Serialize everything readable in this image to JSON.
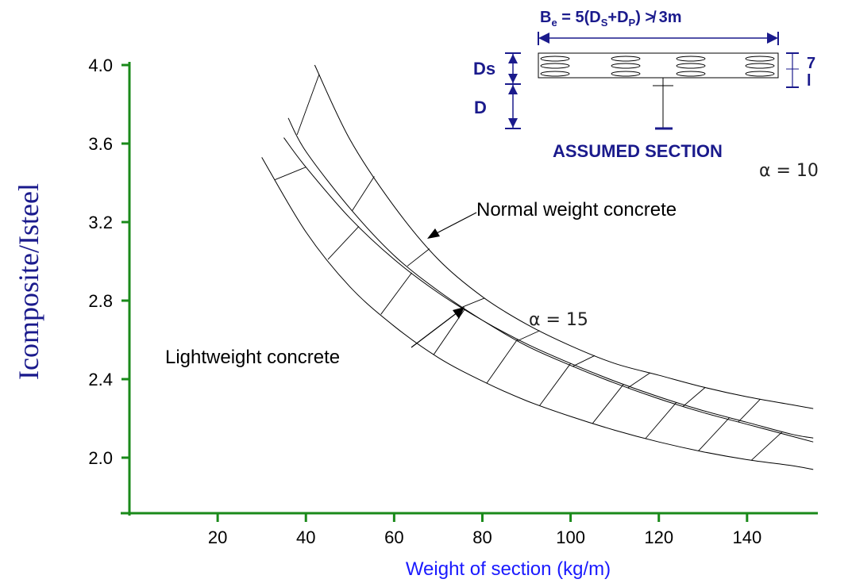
{
  "chart_data": {
    "type": "line",
    "xlabel": "Weight of section (kg/m)",
    "ylabel": "Icomposite/Isteel",
    "x_ticks": [
      20,
      40,
      60,
      80,
      100,
      120,
      140
    ],
    "y_ticks": [
      "2.0",
      "2.4",
      "2.8",
      "3.2",
      "3.6",
      "4.0"
    ],
    "xlim": [
      0,
      155
    ],
    "ylim": [
      1.7,
      4.0
    ],
    "grid": false,
    "series": [
      {
        "name": "",
        "x": [
          42,
          50,
          60,
          70,
          80,
          90,
          100,
          110,
          120,
          130,
          140,
          150,
          155
        ],
        "y": [
          4.0,
          3.62,
          3.28,
          3.01,
          2.82,
          2.68,
          2.57,
          2.48,
          2.42,
          2.36,
          2.31,
          2.27,
          2.25
        ]
      },
      {
        "name": "",
        "x": [
          36,
          40,
          50,
          60,
          70,
          80,
          90,
          100,
          110,
          120,
          130,
          140,
          150,
          155
        ],
        "y": [
          3.73,
          3.56,
          3.27,
          3.03,
          2.85,
          2.7,
          2.57,
          2.47,
          2.38,
          2.3,
          2.23,
          2.17,
          2.11,
          2.08
        ]
      },
      {
        "name": "",
        "x": [
          35,
          40,
          50,
          60,
          70,
          80,
          90,
          100,
          110,
          120,
          130,
          140,
          150,
          155
        ],
        "y": [
          3.63,
          3.48,
          3.22,
          3.01,
          2.84,
          2.7,
          2.58,
          2.48,
          2.39,
          2.31,
          2.24,
          2.18,
          2.12,
          2.1
        ]
      },
      {
        "name": "",
        "x": [
          30,
          40,
          50,
          60,
          70,
          80,
          90,
          100,
          110,
          120,
          130,
          140,
          150,
          155
        ],
        "y": [
          3.53,
          3.15,
          2.87,
          2.67,
          2.51,
          2.39,
          2.29,
          2.21,
          2.14,
          2.08,
          2.03,
          1.99,
          1.96,
          1.94
        ]
      }
    ],
    "annotations": {
      "normal": "Normal weight concrete",
      "lightweight": "Lightweight concrete",
      "alpha10": "α  =  10",
      "alpha15": "α  =  15",
      "section_title": "ASSUMED SECTION",
      "be_formula": "Be = 5(Ds+Dp) ≯ 3m",
      "ds_label": "Ds",
      "d_label": "D",
      "seven": "7",
      "el": "l"
    },
    "colors": {
      "axis": "#1a8a1a",
      "ylabel": "#1a1a8c",
      "xlabel": "#1a1aff",
      "section": "#1a1a8c"
    }
  }
}
